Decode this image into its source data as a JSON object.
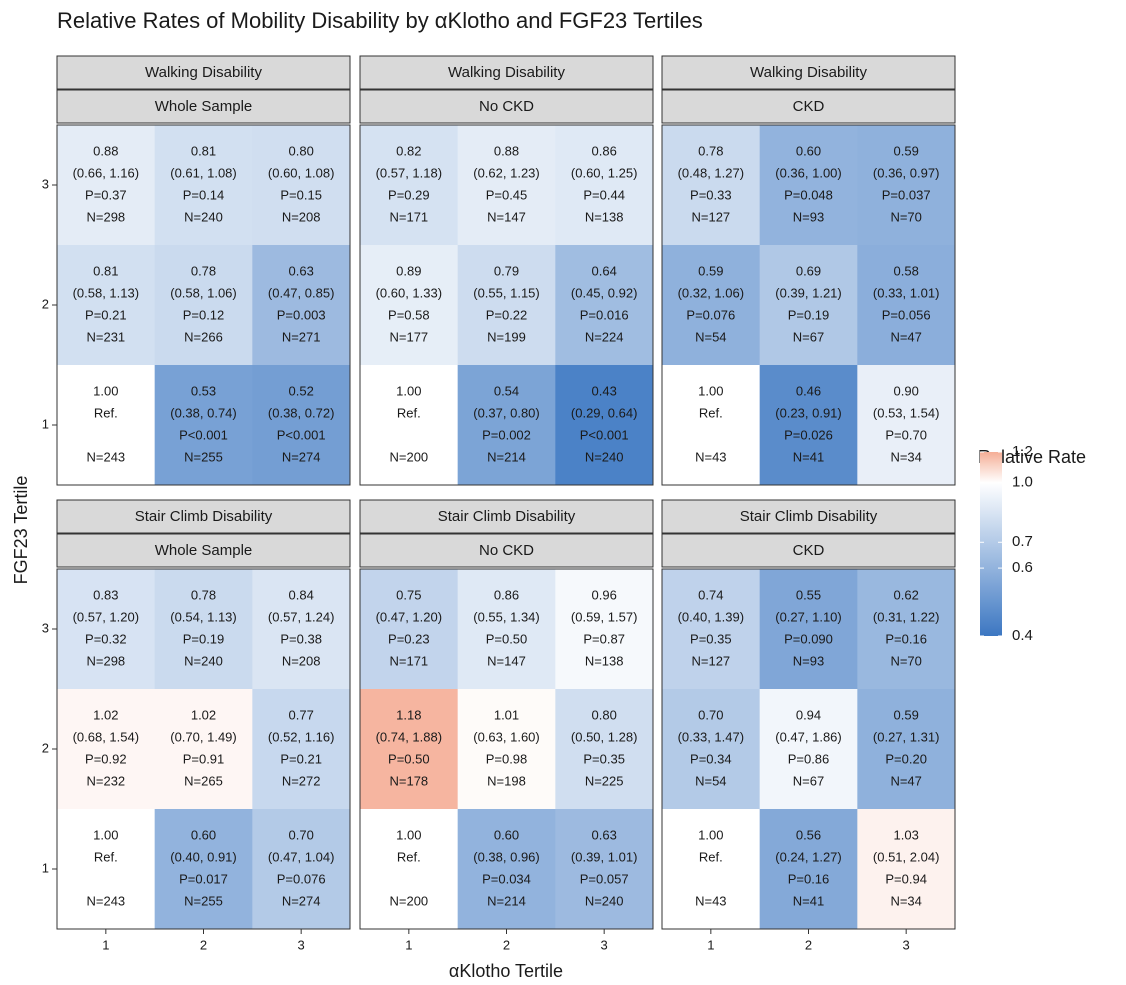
{
  "chart_data": {
    "type": "heatmap",
    "title": "Relative Rates of Mobility Disability by αKlotho and FGF23 Tertiles",
    "x_label": "αKlotho Tertile",
    "y_label": "FGF23 Tertile",
    "xlim": [
      0.5,
      3.5
    ],
    "ylim": [
      0.5,
      3.5
    ],
    "xticks": [
      1,
      2,
      3
    ],
    "yticks": [
      1,
      2,
      3
    ],
    "legend_title": "Relative Rate",
    "log_scale": true,
    "clim": [
      0.4,
      1.2
    ],
    "midpoint": 1,
    "colors": [
      "#3c77c2",
      "#ffffff",
      "#f5ae96"
    ],
    "cticks": [
      1.2,
      {
        "value": 1,
        "label": "1.0"
      },
      0.7,
      0.6,
      0.4
    ],
    "panels": [
      {
        "facets": [
          "Walking Disability",
          "Whole Sample"
        ],
        "cells": [
          {
            "x": 1,
            "y": 3,
            "value": 0.88,
            "value_label": "0.88",
            "ci": "(0.66, 1.16)",
            "p": "P=0.37",
            "n": "N=298"
          },
          {
            "x": 2,
            "y": 3,
            "value": 0.81,
            "value_label": "0.81",
            "ci": "(0.61, 1.08)",
            "p": "P=0.14",
            "n": "N=240"
          },
          {
            "x": 3,
            "y": 3,
            "value": 0.8,
            "value_label": "0.80",
            "ci": "(0.60, 1.08)",
            "p": "P=0.15",
            "n": "N=208"
          },
          {
            "x": 1,
            "y": 2,
            "value": 0.81,
            "value_label": "0.81",
            "ci": "(0.58, 1.13)",
            "p": "P=0.21",
            "n": "N=231"
          },
          {
            "x": 2,
            "y": 2,
            "value": 0.78,
            "value_label": "0.78",
            "ci": "(0.58, 1.06)",
            "p": "P=0.12",
            "n": "N=266"
          },
          {
            "x": 3,
            "y": 2,
            "value": 0.63,
            "value_label": "0.63",
            "ci": "(0.47, 0.85)",
            "p": "P=0.003",
            "n": "N=271"
          },
          {
            "x": 1,
            "y": 1,
            "value": 1,
            "value_label": "1.00",
            "ci": "Ref.",
            "n": "N=243"
          },
          {
            "x": 2,
            "y": 1,
            "value": 0.53,
            "value_label": "0.53",
            "ci": "(0.38, 0.74)",
            "p": "P<0.001",
            "n": "N=255"
          },
          {
            "x": 3,
            "y": 1,
            "value": 0.52,
            "value_label": "0.52",
            "ci": "(0.38, 0.72)",
            "p": "P<0.001",
            "n": "N=274"
          }
        ]
      },
      {
        "facets": [
          "Walking Disability",
          "No CKD"
        ],
        "cells": [
          {
            "x": 1,
            "y": 3,
            "value": 0.82,
            "value_label": "0.82",
            "ci": "(0.57, 1.18)",
            "p": "P=0.29",
            "n": "N=171"
          },
          {
            "x": 2,
            "y": 3,
            "value": 0.88,
            "value_label": "0.88",
            "ci": "(0.62, 1.23)",
            "p": "P=0.45",
            "n": "N=147"
          },
          {
            "x": 3,
            "y": 3,
            "value": 0.86,
            "value_label": "0.86",
            "ci": "(0.60, 1.25)",
            "p": "P=0.44",
            "n": "N=138"
          },
          {
            "x": 1,
            "y": 2,
            "value": 0.89,
            "value_label": "0.89",
            "ci": "(0.60, 1.33)",
            "p": "P=0.58",
            "n": "N=177"
          },
          {
            "x": 2,
            "y": 2,
            "value": 0.79,
            "value_label": "0.79",
            "ci": "(0.55, 1.15)",
            "p": "P=0.22",
            "n": "N=199"
          },
          {
            "x": 3,
            "y": 2,
            "value": 0.64,
            "value_label": "0.64",
            "ci": "(0.45, 0.92)",
            "p": "P=0.016",
            "n": "N=224"
          },
          {
            "x": 1,
            "y": 1,
            "value": 1,
            "value_label": "1.00",
            "ci": "Ref.",
            "n": "N=200"
          },
          {
            "x": 2,
            "y": 1,
            "value": 0.54,
            "value_label": "0.54",
            "ci": "(0.37, 0.80)",
            "p": "P=0.002",
            "n": "N=214"
          },
          {
            "x": 3,
            "y": 1,
            "value": 0.43,
            "value_label": "0.43",
            "ci": "(0.29, 0.64)",
            "p": "P<0.001",
            "n": "N=240"
          }
        ]
      },
      {
        "facets": [
          "Walking Disability",
          "CKD"
        ],
        "cells": [
          {
            "x": 1,
            "y": 3,
            "value": 0.78,
            "value_label": "0.78",
            "ci": "(0.48, 1.27)",
            "p": "P=0.33",
            "n": "N=127"
          },
          {
            "x": 2,
            "y": 3,
            "value": 0.6,
            "value_label": "0.60",
            "ci": "(0.36, 1.00)",
            "p": "P=0.048",
            "n": "N=93"
          },
          {
            "x": 3,
            "y": 3,
            "value": 0.59,
            "value_label": "0.59",
            "ci": "(0.36, 0.97)",
            "p": "P=0.037",
            "n": "N=70"
          },
          {
            "x": 1,
            "y": 2,
            "value": 0.59,
            "value_label": "0.59",
            "ci": "(0.32, 1.06)",
            "p": "P=0.076",
            "n": "N=54"
          },
          {
            "x": 2,
            "y": 2,
            "value": 0.69,
            "value_label": "0.69",
            "ci": "(0.39, 1.21)",
            "p": "P=0.19",
            "n": "N=67"
          },
          {
            "x": 3,
            "y": 2,
            "value": 0.58,
            "value_label": "0.58",
            "ci": "(0.33, 1.01)",
            "p": "P=0.056",
            "n": "N=47"
          },
          {
            "x": 1,
            "y": 1,
            "value": 1,
            "value_label": "1.00",
            "ci": "Ref.",
            "n": "N=43"
          },
          {
            "x": 2,
            "y": 1,
            "value": 0.46,
            "value_label": "0.46",
            "ci": "(0.23, 0.91)",
            "p": "P=0.026",
            "n": "N=41"
          },
          {
            "x": 3,
            "y": 1,
            "value": 0.9,
            "value_label": "0.90",
            "ci": "(0.53, 1.54)",
            "p": "P=0.70",
            "n": "N=34"
          }
        ]
      },
      {
        "facets": [
          "Stair Climb Disability",
          "Whole Sample"
        ],
        "cells": [
          {
            "x": 1,
            "y": 3,
            "value": 0.83,
            "value_label": "0.83",
            "ci": "(0.57, 1.20)",
            "p": "P=0.32",
            "n": "N=298"
          },
          {
            "x": 2,
            "y": 3,
            "value": 0.78,
            "value_label": "0.78",
            "ci": "(0.54, 1.13)",
            "p": "P=0.19",
            "n": "N=240"
          },
          {
            "x": 3,
            "y": 3,
            "value": 0.84,
            "value_label": "0.84",
            "ci": "(0.57, 1.24)",
            "p": "P=0.38",
            "n": "N=208"
          },
          {
            "x": 1,
            "y": 2,
            "value": 1.02,
            "value_label": "1.02",
            "ci": "(0.68, 1.54)",
            "p": "P=0.92",
            "n": "N=232"
          },
          {
            "x": 2,
            "y": 2,
            "value": 1.02,
            "value_label": "1.02",
            "ci": "(0.70, 1.49)",
            "p": "P=0.91",
            "n": "N=265"
          },
          {
            "x": 3,
            "y": 2,
            "value": 0.77,
            "value_label": "0.77",
            "ci": "(0.52, 1.16)",
            "p": "P=0.21",
            "n": "N=272"
          },
          {
            "x": 1,
            "y": 1,
            "value": 1,
            "value_label": "1.00",
            "ci": "Ref.",
            "n": "N=243"
          },
          {
            "x": 2,
            "y": 1,
            "value": 0.6,
            "value_label": "0.60",
            "ci": "(0.40, 0.91)",
            "p": "P=0.017",
            "n": "N=255"
          },
          {
            "x": 3,
            "y": 1,
            "value": 0.7,
            "value_label": "0.70",
            "ci": "(0.47, 1.04)",
            "p": "P=0.076",
            "n": "N=274"
          }
        ]
      },
      {
        "facets": [
          "Stair Climb Disability",
          "No CKD"
        ],
        "cells": [
          {
            "x": 1,
            "y": 3,
            "value": 0.75,
            "value_label": "0.75",
            "ci": "(0.47, 1.20)",
            "p": "P=0.23",
            "n": "N=171"
          },
          {
            "x": 2,
            "y": 3,
            "value": 0.86,
            "value_label": "0.86",
            "ci": "(0.55, 1.34)",
            "p": "P=0.50",
            "n": "N=147"
          },
          {
            "x": 3,
            "y": 3,
            "value": 0.96,
            "value_label": "0.96",
            "ci": "(0.59, 1.57)",
            "p": "P=0.87",
            "n": "N=138"
          },
          {
            "x": 1,
            "y": 2,
            "value": 1.18,
            "value_label": "1.18",
            "ci": "(0.74, 1.88)",
            "p": "P=0.50",
            "n": "N=178"
          },
          {
            "x": 2,
            "y": 2,
            "value": 1.01,
            "value_label": "1.01",
            "ci": "(0.63, 1.60)",
            "p": "P=0.98",
            "n": "N=198"
          },
          {
            "x": 3,
            "y": 2,
            "value": 0.8,
            "value_label": "0.80",
            "ci": "(0.50, 1.28)",
            "p": "P=0.35",
            "n": "N=225"
          },
          {
            "x": 1,
            "y": 1,
            "value": 1,
            "value_label": "1.00",
            "ci": "Ref.",
            "n": "N=200"
          },
          {
            "x": 2,
            "y": 1,
            "value": 0.6,
            "value_label": "0.60",
            "ci": "(0.38, 0.96)",
            "p": "P=0.034",
            "n": "N=214"
          },
          {
            "x": 3,
            "y": 1,
            "value": 0.63,
            "value_label": "0.63",
            "ci": "(0.39, 1.01)",
            "p": "P=0.057",
            "n": "N=240"
          }
        ]
      },
      {
        "facets": [
          "Stair Climb Disability",
          "CKD"
        ],
        "cells": [
          {
            "x": 1,
            "y": 3,
            "value": 0.74,
            "value_label": "0.74",
            "ci": "(0.40, 1.39)",
            "p": "P=0.35",
            "n": "N=127"
          },
          {
            "x": 2,
            "y": 3,
            "value": 0.55,
            "value_label": "0.55",
            "ci": "(0.27, 1.10)",
            "p": "P=0.090",
            "n": "N=93"
          },
          {
            "x": 3,
            "y": 3,
            "value": 0.62,
            "value_label": "0.62",
            "ci": "(0.31, 1.22)",
            "p": "P=0.16",
            "n": "N=70"
          },
          {
            "x": 1,
            "y": 2,
            "value": 0.7,
            "value_label": "0.70",
            "ci": "(0.33, 1.47)",
            "p": "P=0.34",
            "n": "N=54"
          },
          {
            "x": 2,
            "y": 2,
            "value": 0.94,
            "value_label": "0.94",
            "ci": "(0.47, 1.86)",
            "p": "P=0.86",
            "n": "N=67"
          },
          {
            "x": 3,
            "y": 2,
            "value": 0.59,
            "value_label": "0.59",
            "ci": "(0.27, 1.31)",
            "p": "P=0.20",
            "n": "N=47"
          },
          {
            "x": 1,
            "y": 1,
            "value": 1,
            "value_label": "1.00",
            "ci": "Ref.",
            "n": "N=43"
          },
          {
            "x": 2,
            "y": 1,
            "value": 0.56,
            "value_label": "0.56",
            "ci": "(0.24, 1.27)",
            "p": "P=0.16",
            "n": "N=41"
          },
          {
            "x": 3,
            "y": 1,
            "value": 1.03,
            "value_label": "1.03",
            "ci": "(0.51, 2.04)",
            "p": "P=0.94",
            "n": "N=34"
          }
        ]
      }
    ]
  }
}
